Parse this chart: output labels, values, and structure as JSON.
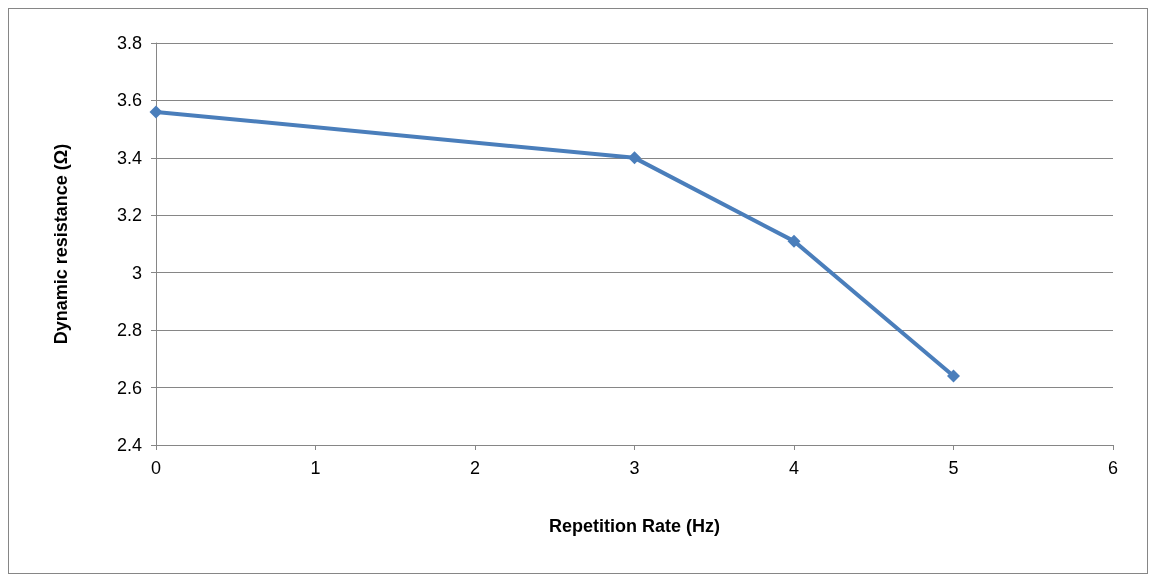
{
  "chart_data": {
    "type": "line",
    "xlabel": "Repetition Rate (Hz)",
    "ylabel": "Dynamic resistance (Ω)",
    "x": [
      0,
      3,
      4,
      5
    ],
    "series": [
      {
        "color": "#4a7ebb",
        "values": [
          3.56,
          3.4,
          3.11,
          2.64
        ]
      }
    ],
    "xlim": [
      0,
      6
    ],
    "xticks": [
      0,
      1,
      2,
      3,
      4,
      5,
      6
    ],
    "ylim": [
      2.4,
      3.8
    ],
    "yticks": [
      2.4,
      2.6,
      2.8,
      3,
      3.2,
      3.4,
      3.6,
      3.8
    ],
    "grid": "y",
    "marker": "diamond",
    "line_style": "solid"
  }
}
